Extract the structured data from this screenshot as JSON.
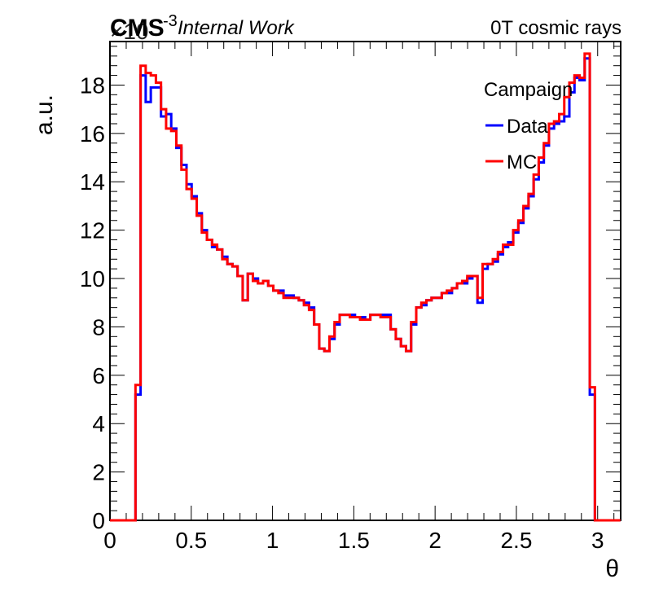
{
  "header": {
    "experiment": "CMS",
    "status": "Internal Work",
    "conditions": "0T cosmic rays",
    "scale_factor": "×10",
    "scale_exponent": "-3"
  },
  "legend": {
    "title": "Campaign",
    "entries": [
      {
        "label": "Data",
        "color": "#0000ff"
      },
      {
        "label": "MC",
        "color": "#ff0000"
      }
    ]
  },
  "chart_data": {
    "type": "histogram",
    "xlabel": "θ",
    "ylabel": "a.u.",
    "xlim": [
      0,
      3.1416
    ],
    "ylim": [
      0,
      19.8
    ],
    "y_scale_factor": 0.001,
    "x_ticks": [
      "0",
      "0.5",
      "1",
      "1.5",
      "2",
      "2.5",
      "3"
    ],
    "y_ticks": [
      "0",
      "2",
      "4",
      "6",
      "8",
      "10",
      "12",
      "14",
      "16",
      "18"
    ],
    "bin_width": 0.0314,
    "bin_edges_start": 0,
    "series": [
      {
        "name": "Data",
        "color": "#0000ff",
        "values": [
          0,
          0,
          0,
          0,
          0,
          5.2,
          18.4,
          17.3,
          17.9,
          17.9,
          16.7,
          16.8,
          16.2,
          15.4,
          14.7,
          13.9,
          13.4,
          12.7,
          12.0,
          11.6,
          11.3,
          11.2,
          10.9,
          10.6,
          10.5,
          10.1,
          9.1,
          10.2,
          10.0,
          9.8,
          9.9,
          9.7,
          9.5,
          9.5,
          9.3,
          9.3,
          9.2,
          9.1,
          9.0,
          8.8,
          8.1,
          7.1,
          7.0,
          7.5,
          8.1,
          8.5,
          8.5,
          8.5,
          8.4,
          8.4,
          8.3,
          8.5,
          8.5,
          8.5,
          8.5,
          7.9,
          7.5,
          7.2,
          7.0,
          8.1,
          8.8,
          8.9,
          9.1,
          9.2,
          9.2,
          9.4,
          9.4,
          9.6,
          9.8,
          9.8,
          10.0,
          10.1,
          9.0,
          10.4,
          10.6,
          10.7,
          11.0,
          11.3,
          11.5,
          11.9,
          12.3,
          12.9,
          13.4,
          14.1,
          14.8,
          15.5,
          16.2,
          16.4,
          16.5,
          16.7,
          17.7,
          18.3,
          18.2,
          19.1,
          5.2,
          0,
          0,
          0,
          0,
          0
        ]
      },
      {
        "name": "MC",
        "color": "#ff0000",
        "values": [
          0,
          0,
          0,
          0,
          0,
          5.6,
          18.8,
          18.5,
          18.4,
          18.1,
          17.0,
          16.2,
          16.1,
          15.5,
          14.5,
          13.7,
          13.3,
          12.6,
          11.9,
          11.6,
          11.4,
          11.2,
          10.8,
          10.6,
          10.5,
          10.1,
          9.1,
          10.2,
          9.9,
          9.8,
          9.9,
          9.7,
          9.5,
          9.4,
          9.2,
          9.2,
          9.2,
          9.1,
          8.9,
          8.7,
          8.1,
          7.1,
          7.0,
          7.6,
          8.2,
          8.5,
          8.5,
          8.4,
          8.4,
          8.3,
          8.3,
          8.5,
          8.5,
          8.4,
          8.4,
          7.9,
          7.5,
          7.2,
          7.0,
          8.2,
          8.8,
          9.0,
          9.1,
          9.2,
          9.2,
          9.4,
          9.5,
          9.6,
          9.8,
          9.9,
          10.1,
          10.1,
          9.2,
          10.6,
          10.6,
          10.8,
          11.1,
          11.4,
          11.4,
          12.0,
          12.4,
          13.0,
          13.5,
          14.3,
          15.0,
          15.6,
          16.4,
          16.5,
          16.8,
          17.5,
          18.1,
          18.4,
          18.3,
          19.3,
          5.5,
          0,
          0,
          0,
          0,
          0
        ]
      }
    ]
  }
}
